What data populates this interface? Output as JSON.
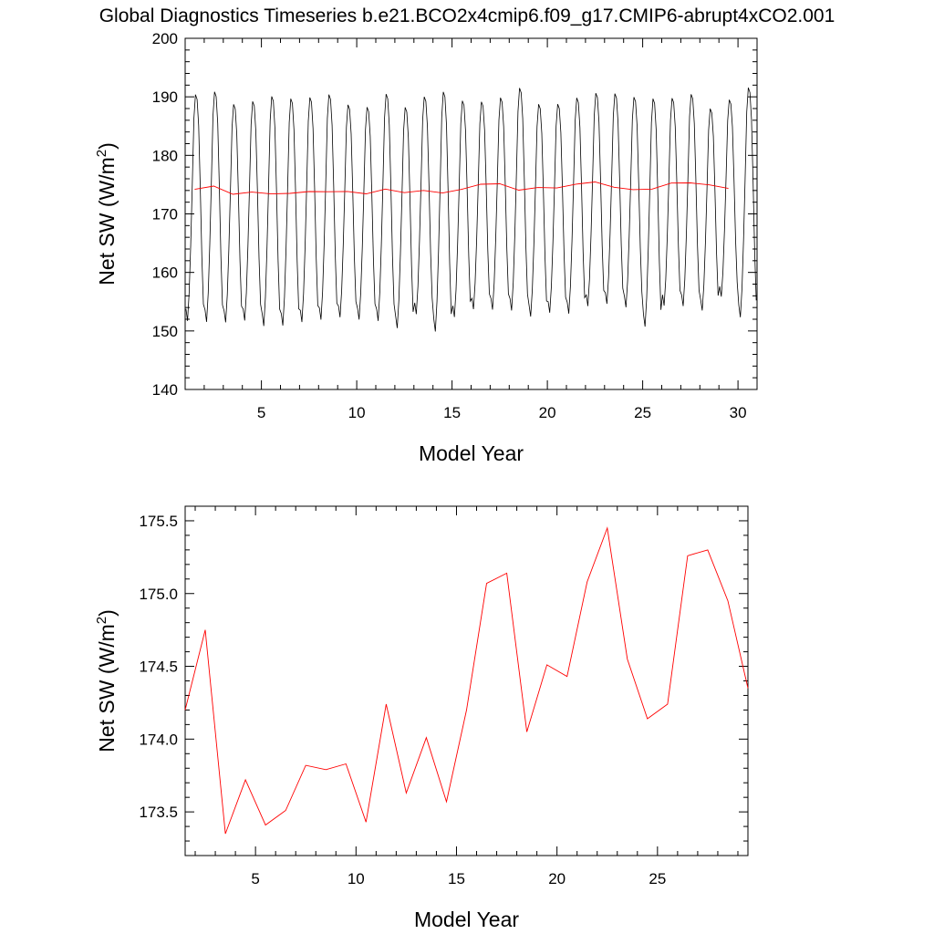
{
  "title": "Global Diagnostics Timeseries b.e21.BCO2x4cmip6.f09_g17.CMIP6-abrupt4xCO2.001",
  "colors": {
    "monthly": "#000000",
    "annual": "#ff0000",
    "axis": "#000000"
  },
  "chart_data": [
    {
      "type": "line",
      "panel": "top",
      "xlabel": "Model Year",
      "ylabel": "Net SW (W/m",
      "ylabel_superscript": "2",
      "ylabel_close": ")",
      "xlim": [
        1.0,
        31.0
      ],
      "ylim": [
        140,
        200
      ],
      "x_ticks": [
        5,
        10,
        15,
        20,
        25,
        30
      ],
      "x_tick_labels": [
        "5",
        "10",
        "15",
        "20",
        "25",
        "30"
      ],
      "y_ticks": [
        140,
        150,
        160,
        170,
        180,
        190,
        200
      ],
      "y_tick_labels": [
        "140",
        "150",
        "160",
        "170",
        "180",
        "190",
        "200"
      ],
      "monthly_cycle_shape": [
        0.08,
        0.03,
        0.15,
        0.35,
        0.6,
        0.88,
        0.98,
        0.96,
        0.85,
        0.6,
        0.3,
        0.1
      ],
      "monthly_annual_min": [
        150.5,
        150.3,
        150.3,
        150.6,
        149.6,
        149.7,
        150.3,
        150.7,
        151.2,
        150.8,
        150.5,
        149.3,
        151.7,
        148.6,
        151.2,
        152.6,
        152.5,
        152.3,
        151.3,
        152.0,
        151.8,
        153.1,
        153.5,
        152.9,
        149.5,
        153.2,
        153.1,
        152.4,
        154.8,
        151.1
      ],
      "monthly_annual_max": [
        191.2,
        191.7,
        189.5,
        190.0,
        190.9,
        190.5,
        190.7,
        191.2,
        189.4,
        189.0,
        191.3,
        189.0,
        190.8,
        191.7,
        190.1,
        189.9,
        190.6,
        192.3,
        189.5,
        189.5,
        190.6,
        191.4,
        191.3,
        190.7,
        190.5,
        190.5,
        191.2,
        188.7,
        190.2,
        192.4
      ],
      "series": [
        {
          "kind": "annual",
          "x": [
            1.5,
            2.5,
            3.5,
            4.5,
            5.5,
            6.5,
            7.5,
            8.5,
            9.5,
            10.5,
            11.5,
            12.5,
            13.5,
            14.5,
            15.5,
            16.5,
            17.5,
            18.5,
            19.5,
            20.5,
            21.5,
            22.5,
            23.5,
            24.5,
            25.5,
            26.5,
            27.5,
            28.5,
            29.5
          ],
          "values": [
            174.2,
            174.75,
            173.35,
            173.72,
            173.41,
            173.51,
            173.82,
            173.79,
            173.83,
            173.43,
            174.24,
            173.63,
            174.01,
            173.57,
            174.2,
            175.07,
            175.14,
            174.05,
            174.51,
            174.43,
            175.08,
            175.45,
            174.55,
            174.14,
            174.24,
            175.26,
            175.3,
            174.95,
            174.35
          ]
        }
      ]
    },
    {
      "type": "line",
      "panel": "bottom",
      "xlabel": "Model Year",
      "ylabel": "Net SW (W/m",
      "ylabel_superscript": "2",
      "ylabel_close": ")",
      "xlim": [
        1.5,
        29.5
      ],
      "ylim": [
        173.2,
        175.6
      ],
      "x_ticks": [
        5,
        10,
        15,
        20,
        25
      ],
      "x_tick_labels": [
        "5",
        "10",
        "15",
        "20",
        "25"
      ],
      "y_ticks": [
        173.5,
        174.0,
        174.5,
        175.0,
        175.5
      ],
      "y_tick_labels": [
        "173.5",
        "174.0",
        "174.5",
        "175.0",
        "175.5"
      ],
      "series": [
        {
          "kind": "annual",
          "x": [
            1.5,
            2.5,
            3.5,
            4.5,
            5.5,
            6.5,
            7.5,
            8.5,
            9.5,
            10.5,
            11.5,
            12.5,
            13.5,
            14.5,
            15.5,
            16.5,
            17.5,
            18.5,
            19.5,
            20.5,
            21.5,
            22.5,
            23.5,
            24.5,
            25.5,
            26.5,
            27.5,
            28.5,
            29.5
          ],
          "values": [
            174.2,
            174.75,
            173.35,
            173.72,
            173.41,
            173.51,
            173.82,
            173.79,
            173.83,
            173.43,
            174.24,
            173.63,
            174.01,
            173.57,
            174.2,
            175.07,
            175.14,
            174.05,
            174.51,
            174.43,
            175.08,
            175.45,
            174.55,
            174.14,
            174.24,
            175.26,
            175.3,
            174.95,
            174.35
          ]
        }
      ]
    }
  ]
}
